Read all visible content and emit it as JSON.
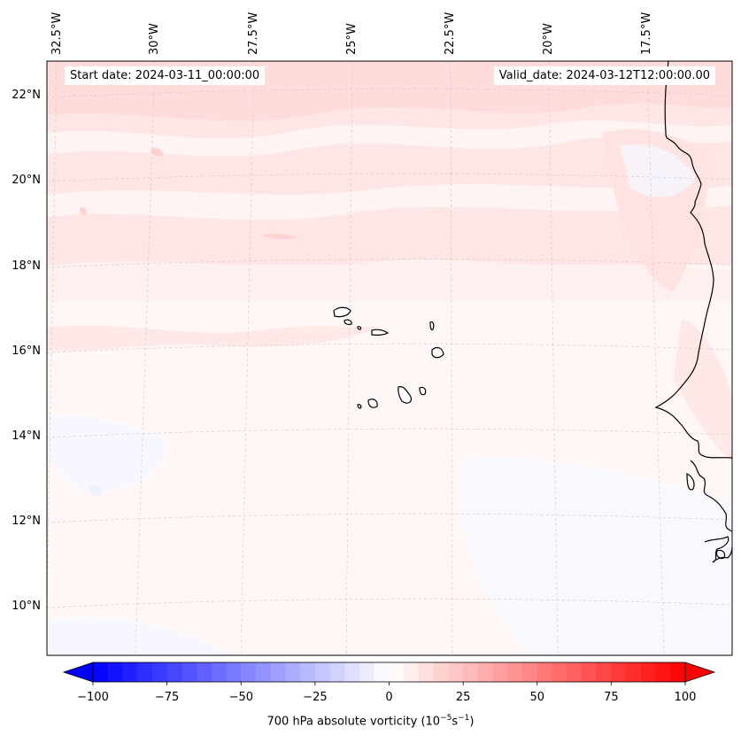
{
  "header": {
    "start_date": "Start date: 2024-03-11_00:00:00",
    "valid_date": "Valid_date: 2024-03-12T12:00:00.00"
  },
  "map": {
    "projection": "lambert-conformal",
    "lon_labels": [
      "32.5°W",
      "30°W",
      "27.5°W",
      "25°W",
      "22.5°W",
      "20°W",
      "17.5°W"
    ],
    "lat_labels": [
      "22°N",
      "20°N",
      "18°N",
      "16°N",
      "14°N",
      "12°N",
      "10°N"
    ],
    "gridlines": "dashed-grey",
    "coastline_color": "#000000",
    "field": "700 hPa absolute vorticity",
    "field_description": "weak positive vorticity (light red) across the northern half, near zero (white) and weak negative (pale blue) in the south"
  },
  "colorbar": {
    "label_main": "700 hPa absolute vorticity (10",
    "label_exp1": "−5",
    "label_mid": "s",
    "label_exp2": "−1",
    "label_end": ")",
    "min": -100,
    "max": 100,
    "ticks": [
      "−100",
      "−75",
      "−50",
      "−25",
      "0",
      "25",
      "50",
      "75",
      "100"
    ],
    "cmap": "bwr",
    "extend": "both",
    "low_color": "#0000ff",
    "mid_color": "#ffffff",
    "high_color": "#ff0000"
  }
}
